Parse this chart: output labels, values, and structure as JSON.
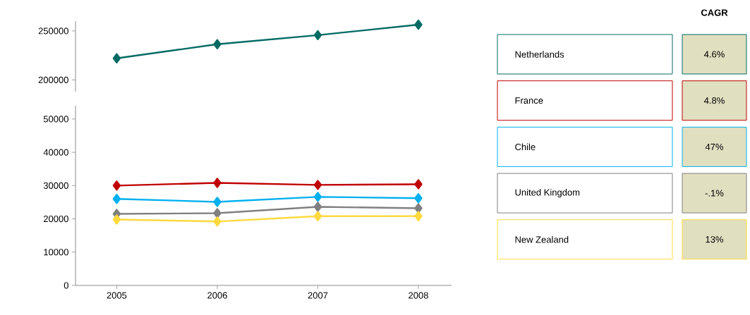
{
  "chart_data": [
    {
      "type": "line",
      "categories": [
        "2005",
        "2006",
        "2007",
        "2008"
      ],
      "ylim": [
        188000,
        260000
      ],
      "yticks": [
        200000,
        250000
      ],
      "tick_labels": "y",
      "marker": "diamond",
      "legend": "right",
      "series": [
        {
          "name": "Netherlands",
          "color": "#006b63",
          "values": [
            222000,
            236400,
            245700,
            256400
          ]
        }
      ]
    },
    {
      "type": "line",
      "categories": [
        "2005",
        "2006",
        "2007",
        "2008"
      ],
      "ylim": [
        0,
        54000
      ],
      "yticks": [
        0,
        10000,
        20000,
        30000,
        40000,
        50000
      ],
      "marker": "diamond",
      "legend": "right",
      "series": [
        {
          "name": "France",
          "color": "#c00000",
          "values": [
            30000,
            30800,
            30200,
            30400
          ]
        },
        {
          "name": "Chile",
          "color": "#00b0f0",
          "values": [
            26000,
            25100,
            26600,
            26200
          ]
        },
        {
          "name": "United Kingdom",
          "color": "#808080",
          "values": [
            21500,
            21700,
            23600,
            23200
          ]
        },
        {
          "name": "New Zealand",
          "color": "#ffd93d",
          "values": [
            19800,
            19200,
            20800,
            20800
          ]
        }
      ]
    },
    {
      "type": "other",
      "title": "CAGR",
      "annotations": [
        "4.6%",
        "4.8%",
        "47%",
        "-.1%",
        "13%"
      ]
    }
  ]
}
